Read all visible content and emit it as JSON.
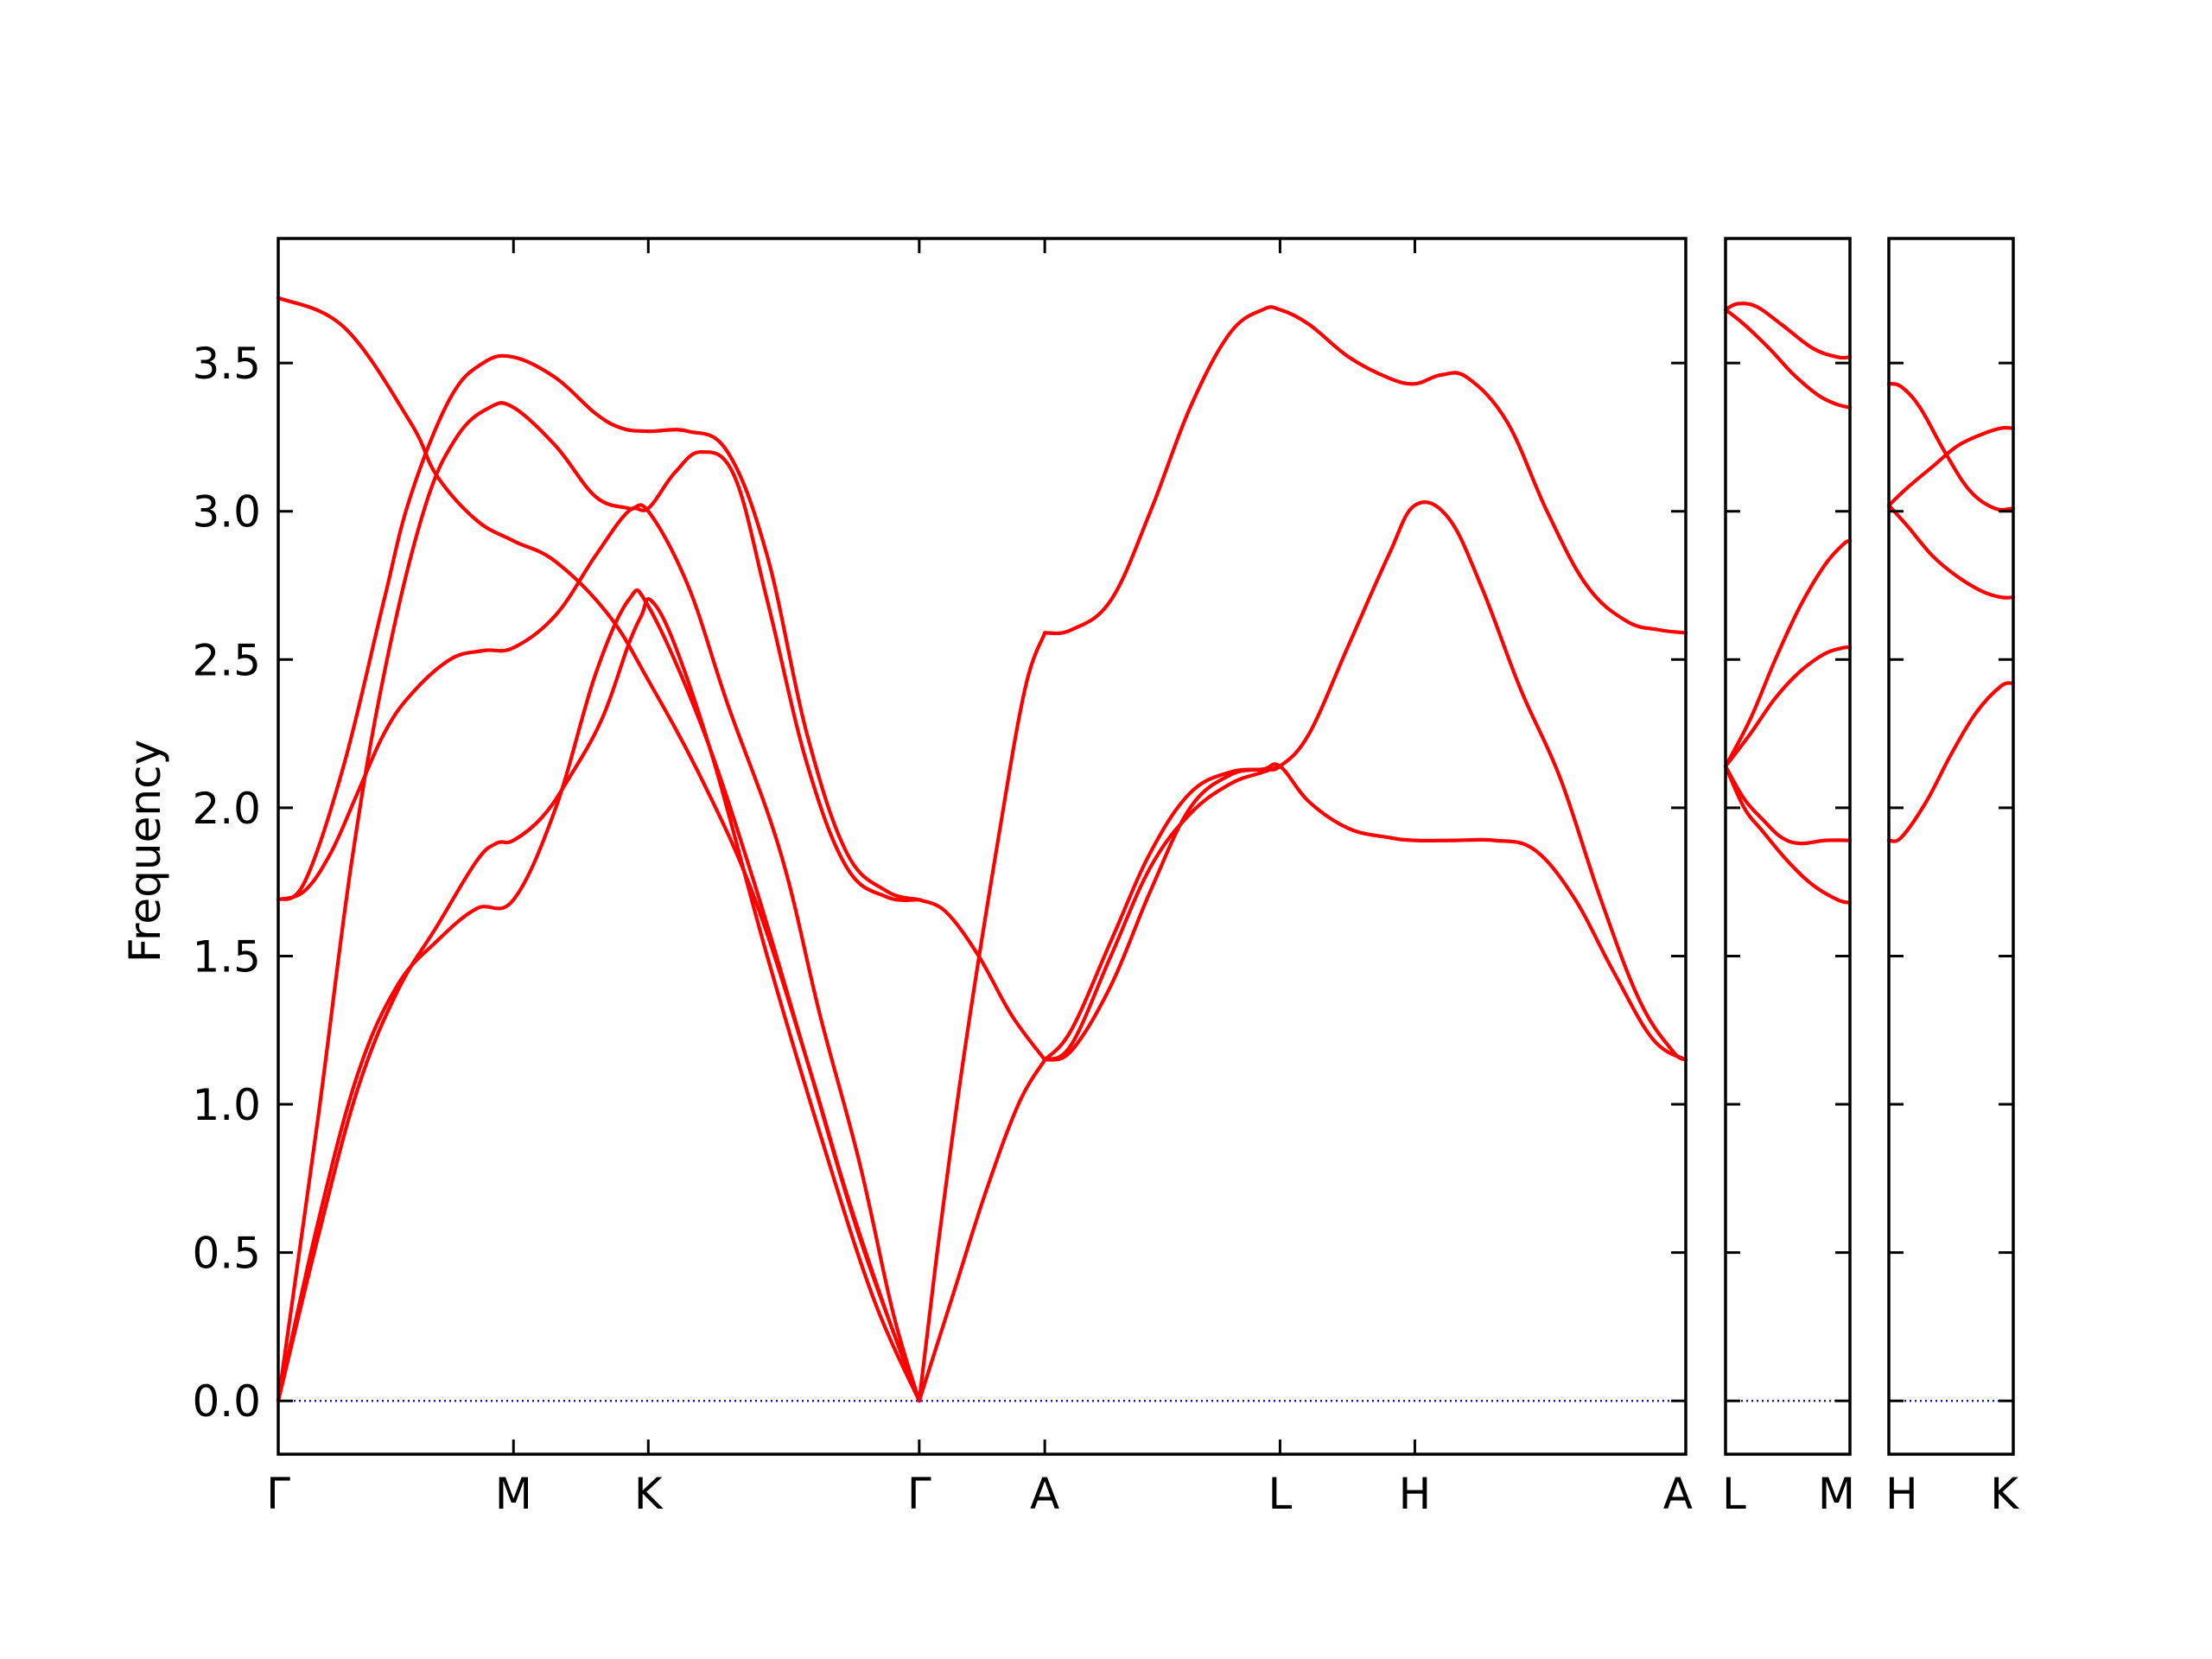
{
  "chart_data": {
    "type": "line",
    "title": "",
    "ylabel": "Frequency",
    "xlabel": "",
    "ylim": [
      -0.18,
      3.92
    ],
    "yticks": [
      "0.0",
      "0.5",
      "1.0",
      "1.5",
      "2.0",
      "2.5",
      "3.0",
      "3.5"
    ],
    "colors": {
      "bands": "#ff0000",
      "zero_line": "#0000cc",
      "frame": "#000000"
    },
    "panels": [
      {
        "x_range": [
          0,
          4.85
        ],
        "ticks": [
          {
            "x": 0,
            "label": "Γ"
          },
          {
            "x": 1.78,
            "label": "M"
          },
          {
            "x": 2.8,
            "label": "K"
          },
          {
            "x": 4.85,
            "label": "Γ"
          },
          {
            "x": 5.8,
            "label": "A"
          },
          {
            "x": 7.58,
            "label": "L"
          },
          {
            "x": 8.6,
            "label": "H"
          },
          {
            "x": 10.65,
            "label": "A"
          }
        ],
        "x_range_full": [
          0,
          10.65
        ],
        "bands": [
          {
            "x": [
              0,
              0.5,
              1.0,
              1.2,
              1.5,
              1.78,
              2.1,
              2.5,
              2.8,
              3.2,
              3.6,
              4.0,
              4.3,
              4.6,
              4.85
            ],
            "y": [
              3.72,
              3.62,
              3.3,
              3.12,
              2.97,
              2.9,
              2.83,
              2.65,
              2.43,
              2.1,
              1.7,
              1.15,
              0.7,
              0.3,
              0.0
            ]
          },
          {
            "x": [
              0,
              0.2,
              0.5,
              0.8,
              1.0,
              1.3,
              1.55,
              1.78,
              2.1,
              2.4,
              2.6,
              2.8,
              3.1,
              3.4,
              3.7,
              4.0,
              4.3,
              4.6,
              4.85
            ],
            "y": [
              1.69,
              1.75,
              2.15,
              2.7,
              3.05,
              3.38,
              3.5,
              3.52,
              3.45,
              3.33,
              3.28,
              3.27,
              3.27,
              3.2,
              2.85,
              2.25,
              1.85,
              1.72,
              1.69
            ]
          },
          {
            "x": [
              0,
              0.2,
              0.4,
              0.6,
              0.8,
              1.0,
              1.3,
              1.55,
              1.78,
              2.1,
              2.4,
              2.65,
              2.8,
              3.0,
              3.2,
              3.45,
              3.7,
              4.0,
              4.3,
              4.6,
              4.85
            ],
            "y": [
              1.69,
              1.72,
              1.85,
              2.05,
              2.25,
              2.38,
              2.5,
              2.53,
              2.54,
              2.65,
              2.85,
              3.0,
              3.01,
              3.13,
              3.2,
              3.12,
              2.7,
              2.15,
              1.8,
              1.7,
              1.69
            ]
          },
          {
            "x": [
              0,
              0.3,
              0.55,
              0.8,
              1.1,
              1.35,
              1.6,
              1.78,
              2.1,
              2.4,
              2.65,
              2.8,
              3.1,
              3.4,
              3.8,
              4.1,
              4.4,
              4.65,
              4.85
            ],
            "y": [
              0.0,
              0.95,
              1.8,
              2.45,
              3.0,
              3.25,
              3.35,
              3.35,
              3.22,
              3.05,
              3.01,
              3.0,
              2.75,
              2.35,
              1.85,
              1.3,
              0.8,
              0.3,
              0.0
            ]
          },
          {
            "x": [
              0,
              0.3,
              0.6,
              0.9,
              1.2,
              1.5,
              1.65,
              1.78,
              2.0,
              2.2,
              2.45,
              2.65,
              2.75,
              2.82,
              3.0,
              3.3,
              3.7,
              4.1,
              4.5,
              4.85
            ],
            "y": [
              0.0,
              0.55,
              1.05,
              1.38,
              1.6,
              1.82,
              1.88,
              1.89,
              1.97,
              2.1,
              2.3,
              2.55,
              2.65,
              2.7,
              2.55,
              2.15,
              1.5,
              0.9,
              0.35,
              0.0
            ]
          },
          {
            "x": [
              0,
              0.3,
              0.6,
              0.9,
              1.2,
              1.5,
              1.78,
              2.1,
              2.4,
              2.65,
              2.8,
              3.2,
              3.6,
              4.0,
              4.4,
              4.85
            ],
            "y": [
              0.0,
              0.6,
              1.1,
              1.4,
              1.55,
              1.66,
              1.69,
              2.0,
              2.45,
              2.7,
              2.68,
              2.28,
              1.75,
              1.15,
              0.55,
              0.0
            ]
          },
          {
            "x": [
              4.85,
              5.0,
              5.2,
              5.45,
              5.65,
              5.8
            ],
            "y": [
              0.0,
              0.55,
              1.2,
              1.9,
              2.4,
              2.59
            ]
          },
          {
            "x": [
              4.85,
              5.1,
              5.35,
              5.6,
              5.8
            ],
            "y": [
              0.0,
              0.35,
              0.7,
              1.0,
              1.15
            ]
          },
          {
            "x": [
              4.85,
              5.05,
              5.3,
              5.55,
              5.8
            ],
            "y": [
              1.69,
              1.65,
              1.5,
              1.3,
              1.15
            ]
          },
          {
            "x": [
              5.8,
              6.0,
              6.3,
              6.6,
              6.9,
              7.2,
              7.45,
              7.58,
              7.8,
              8.1,
              8.4,
              8.6,
              8.8,
              9.0,
              9.3,
              9.6,
              9.9,
              10.2,
              10.45,
              10.65
            ],
            "y": [
              2.59,
              2.6,
              2.7,
              3.0,
              3.35,
              3.6,
              3.68,
              3.68,
              3.63,
              3.52,
              3.45,
              3.43,
              3.46,
              3.45,
              3.3,
              3.0,
              2.75,
              2.63,
              2.6,
              2.59
            ]
          },
          {
            "x": [
              5.8,
              6.0,
              6.3,
              6.6,
              6.9,
              7.2,
              7.45,
              7.58,
              7.8,
              8.1,
              8.4,
              8.6,
              8.85,
              9.1,
              9.4,
              9.7,
              10.0,
              10.3,
              10.55,
              10.65
            ],
            "y": [
              1.15,
              1.18,
              1.4,
              1.72,
              2.0,
              2.11,
              2.13,
              2.14,
              2.25,
              2.55,
              2.85,
              3.02,
              2.98,
              2.75,
              2.4,
              2.1,
              1.7,
              1.35,
              1.18,
              1.15
            ]
          },
          {
            "x": [
              5.8,
              6.0,
              6.3,
              6.6,
              6.9,
              7.2,
              7.45,
              7.58,
              7.8,
              8.1,
              8.4,
              8.6,
              8.9,
              9.2,
              9.5,
              9.8,
              10.1,
              10.4,
              10.65
            ],
            "y": [
              1.15,
              1.25,
              1.55,
              1.85,
              2.05,
              2.12,
              2.13,
              2.14,
              2.02,
              1.93,
              1.9,
              1.89,
              1.89,
              1.89,
              1.86,
              1.7,
              1.45,
              1.22,
              1.15
            ]
          },
          {
            "x": [
              5.8,
              6.0,
              6.3,
              6.6,
              6.9,
              7.2,
              7.45,
              7.58
            ],
            "y": [
              1.15,
              1.2,
              1.5,
              1.8,
              1.98,
              2.08,
              2.12,
              2.14
            ]
          }
        ]
      },
      {
        "ticks": [
          {
            "x": 0,
            "label": "L"
          },
          {
            "x": 1,
            "label": "M"
          }
        ],
        "x_range": [
          0,
          1
        ],
        "bands": [
          {
            "x": [
              0,
              0.1,
              0.25,
              0.45,
              0.7,
              0.9,
              1.0
            ],
            "y": [
              3.68,
              3.7,
              3.69,
              3.63,
              3.55,
              3.52,
              3.52
            ]
          },
          {
            "x": [
              0,
              0.15,
              0.35,
              0.55,
              0.75,
              0.9,
              1.0
            ],
            "y": [
              3.68,
              3.63,
              3.55,
              3.46,
              3.39,
              3.36,
              3.35
            ]
          },
          {
            "x": [
              0,
              0.2,
              0.4,
              0.6,
              0.8,
              0.95,
              1.0
            ],
            "y": [
              2.14,
              2.3,
              2.5,
              2.68,
              2.82,
              2.89,
              2.9
            ]
          },
          {
            "x": [
              0,
              0.2,
              0.4,
              0.6,
              0.8,
              0.95,
              1.0
            ],
            "y": [
              2.14,
              2.25,
              2.37,
              2.46,
              2.52,
              2.54,
              2.54
            ]
          },
          {
            "x": [
              0,
              0.15,
              0.3,
              0.45,
              0.6,
              0.8,
              1.0
            ],
            "y": [
              2.14,
              2.03,
              1.96,
              1.9,
              1.88,
              1.89,
              1.89
            ]
          },
          {
            "x": [
              0,
              0.15,
              0.3,
              0.5,
              0.7,
              0.9,
              1.0
            ],
            "y": [
              2.14,
              2.0,
              1.92,
              1.82,
              1.74,
              1.69,
              1.68
            ]
          }
        ]
      },
      {
        "ticks": [
          {
            "x": 0,
            "label": "H"
          },
          {
            "x": 1,
            "label": "K"
          }
        ],
        "x_range": [
          0,
          1
        ],
        "bands": [
          {
            "x": [
              0,
              0.1,
              0.25,
              0.45,
              0.65,
              0.85,
              1.0
            ],
            "y": [
              3.43,
              3.42,
              3.35,
              3.2,
              3.07,
              3.01,
              3.01
            ]
          },
          {
            "x": [
              0,
              0.15,
              0.35,
              0.55,
              0.75,
              0.9,
              1.0
            ],
            "y": [
              3.02,
              3.08,
              3.15,
              3.22,
              3.26,
              3.28,
              3.28
            ]
          },
          {
            "x": [
              0,
              0.15,
              0.35,
              0.55,
              0.75,
              0.9,
              1.0
            ],
            "y": [
              3.02,
              2.95,
              2.85,
              2.78,
              2.73,
              2.71,
              2.71
            ]
          },
          {
            "x": [
              0,
              0.1,
              0.3,
              0.5,
              0.7,
              0.9,
              1.0
            ],
            "y": [
              1.89,
              1.9,
              2.02,
              2.18,
              2.32,
              2.41,
              2.42
            ]
          }
        ]
      }
    ]
  }
}
